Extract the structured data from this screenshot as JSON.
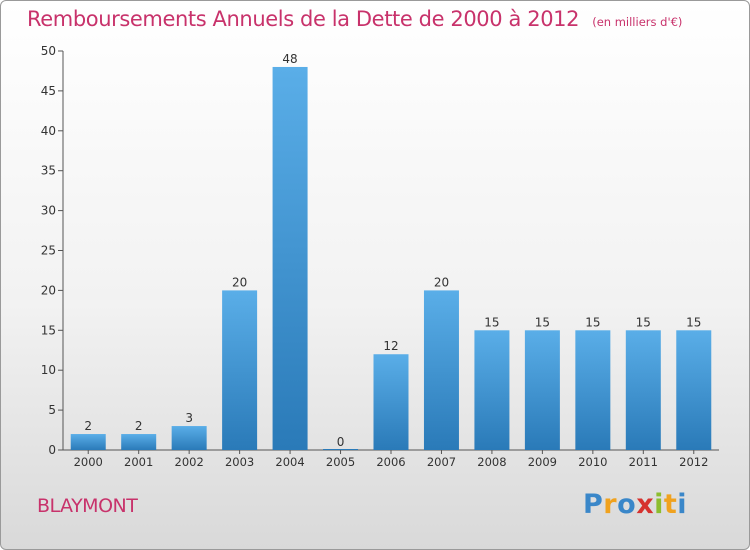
{
  "chart_data": {
    "type": "bar",
    "title": "Remboursements Annuels de la Dette de 2000 à 2012",
    "subtitle": "(en milliers d'€)",
    "categories": [
      "2000",
      "2001",
      "2002",
      "2003",
      "2004",
      "2005",
      "2006",
      "2007",
      "2008",
      "2009",
      "2010",
      "2011",
      "2012"
    ],
    "values": [
      2,
      2,
      3,
      20,
      48,
      0,
      12,
      20,
      15,
      15,
      15,
      15,
      15
    ],
    "data_labels": [
      "2",
      "2",
      "3",
      "20",
      "48",
      "0",
      "12",
      "20",
      "15",
      "15",
      "15",
      "15",
      "15"
    ],
    "ylim": [
      0,
      50
    ],
    "yticks": [
      0,
      5,
      10,
      15,
      20,
      25,
      30,
      35,
      40,
      45,
      50
    ],
    "grid": false,
    "bar_color_top": "#5aaee8",
    "bar_color_bottom": "#2a7ab8"
  },
  "footer": {
    "city": "BLAYMONT",
    "logo_letters": [
      "P",
      "r",
      "o",
      "x",
      "i",
      "t",
      "i"
    ],
    "logo_colors": [
      "#3a87c9",
      "#f0a21e",
      "#3a87c9",
      "#d6322f",
      "#8cbd2e",
      "#f0a21e",
      "#3a87c9"
    ]
  }
}
